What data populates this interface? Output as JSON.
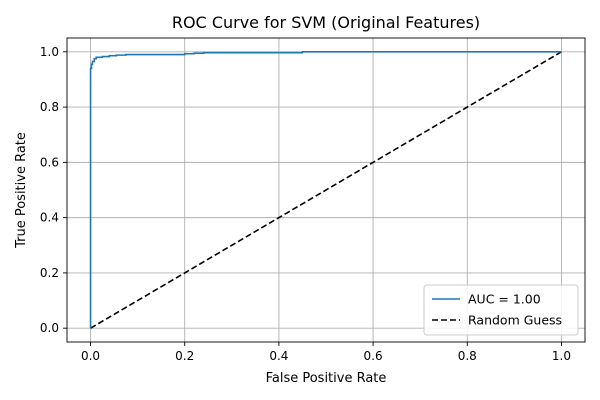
{
  "chart_data": {
    "type": "line",
    "title": "ROC Curve for SVM (Original Features)",
    "xlabel": "False Positive Rate",
    "ylabel": "True Positive Rate",
    "xlim": [
      -0.05,
      1.05
    ],
    "ylim": [
      -0.05,
      1.05
    ],
    "xticks": [
      0.0,
      0.2,
      0.4,
      0.6,
      0.8,
      1.0
    ],
    "yticks": [
      0.0,
      0.2,
      0.4,
      0.6,
      0.8,
      1.0
    ],
    "xtick_labels": [
      "0.0",
      "0.2",
      "0.4",
      "0.6",
      "0.8",
      "1.0"
    ],
    "ytick_labels": [
      "0.0",
      "0.2",
      "0.4",
      "0.6",
      "0.8",
      "1.0"
    ],
    "grid": true,
    "legend_position": "bottom-right",
    "series": [
      {
        "name": "AUC = 1.00",
        "color": "#1f77b4",
        "style": "solid",
        "x": [
          0.0,
          0.0,
          0.002,
          0.002,
          0.004,
          0.004,
          0.008,
          0.008,
          0.012,
          0.012,
          0.025,
          0.025,
          0.04,
          0.04,
          0.055,
          0.055,
          0.075,
          0.075,
          0.2,
          0.2,
          0.22,
          0.22,
          0.24,
          0.24,
          0.45,
          0.45,
          1.0
        ],
        "y": [
          0.0,
          0.94,
          0.94,
          0.955,
          0.955,
          0.965,
          0.965,
          0.975,
          0.975,
          0.98,
          0.98,
          0.983,
          0.983,
          0.986,
          0.986,
          0.988,
          0.988,
          0.99,
          0.99,
          0.993,
          0.993,
          0.995,
          0.995,
          0.997,
          0.997,
          1.0,
          1.0
        ]
      },
      {
        "name": "Random Guess",
        "color": "#000000",
        "style": "dashed",
        "x": [
          0.0,
          1.0
        ],
        "y": [
          0.0,
          1.0
        ]
      }
    ]
  }
}
